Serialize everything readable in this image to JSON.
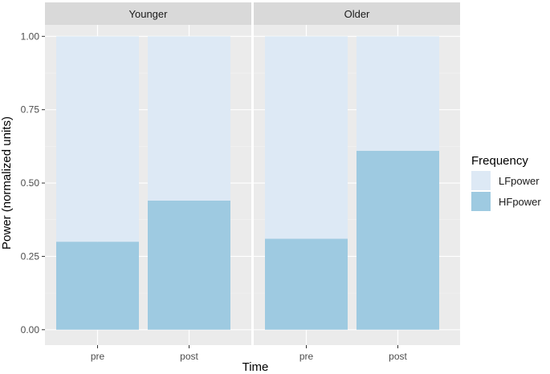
{
  "chart_data": {
    "type": "bar",
    "stacked": true,
    "facets": [
      "Younger",
      "Older"
    ],
    "categories": [
      "pre",
      "post"
    ],
    "series": [
      {
        "name": "LFpower",
        "color": "#dde9f5",
        "values": {
          "Younger": [
            0.7,
            0.56
          ],
          "Older": [
            0.69,
            0.39
          ]
        }
      },
      {
        "name": "HFpower",
        "color": "#9ecae1",
        "values": {
          "Younger": [
            0.3,
            0.44
          ],
          "Older": [
            0.31,
            0.61
          ]
        }
      }
    ],
    "xlabel": "Time",
    "ylabel": "Power (normalized units)",
    "ylim": [
      0,
      1
    ],
    "yticks": [
      "0.00",
      "0.25",
      "0.50",
      "0.75",
      "1.00"
    ],
    "legend": {
      "title": "Frequency",
      "position": "right",
      "items": [
        "LFpower",
        "HFpower"
      ]
    },
    "grid": true,
    "panel_background": "#ebebeb",
    "strip_background": "#d9d9d9"
  }
}
